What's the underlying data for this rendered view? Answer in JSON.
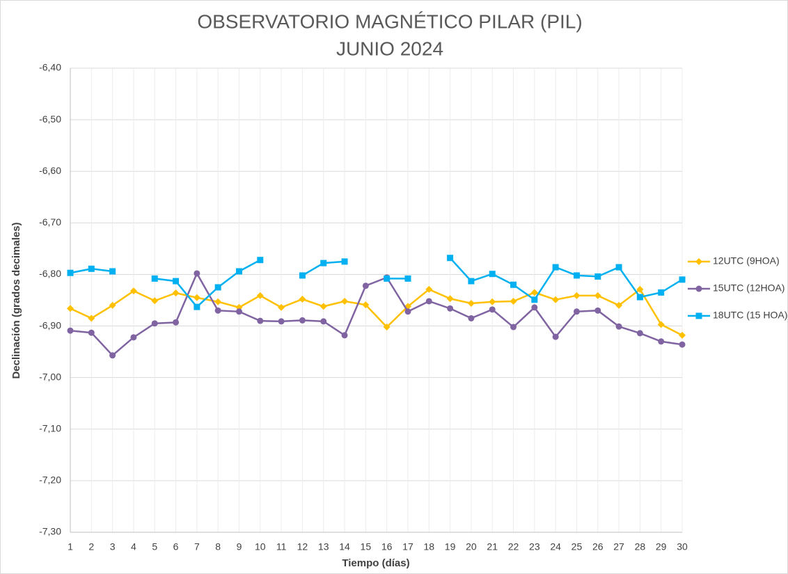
{
  "chart_data": {
    "type": "line",
    "title": "OBSERVATORIO MAGNÉTICO PILAR (PIL)",
    "subtitle": "JUNIO 2024",
    "x_label": "Tiempo (días)",
    "y_label": "Declinación  (grados decimales)",
    "categories": [
      "1",
      "2",
      "3",
      "4",
      "5",
      "6",
      "7",
      "8",
      "9",
      "10",
      "11",
      "12",
      "13",
      "14",
      "15",
      "16",
      "17",
      "18",
      "19",
      "20",
      "21",
      "22",
      "23",
      "24",
      "25",
      "26",
      "27",
      "28",
      "29",
      "30"
    ],
    "ylim": [
      -7.3,
      -6.4
    ],
    "yticks": [
      {
        "value": -7.3,
        "label": "-7,30"
      },
      {
        "value": -7.2,
        "label": "-7,20"
      },
      {
        "value": -7.1,
        "label": "-7,10"
      },
      {
        "value": -7.0,
        "label": "-7,00"
      },
      {
        "value": -6.9,
        "label": "-6,90"
      },
      {
        "value": -6.8,
        "label": "-6,80"
      },
      {
        "value": -6.7,
        "label": "-6,70"
      },
      {
        "value": -6.6,
        "label": "-6,60"
      },
      {
        "value": -6.5,
        "label": "-6,50"
      },
      {
        "value": -6.4,
        "label": "-6,40"
      }
    ],
    "grid": true,
    "legend": "right",
    "series": [
      {
        "name": "12UTC (9HOA)",
        "color": "#FFC000",
        "marker": "diamond",
        "values": [
          -6.866,
          -6.885,
          -6.86,
          -6.832,
          -6.851,
          -6.836,
          -6.845,
          -6.853,
          -6.864,
          -6.841,
          -6.864,
          -6.848,
          -6.862,
          -6.852,
          -6.859,
          -6.902,
          -6.862,
          -6.829,
          -6.847,
          -6.856,
          -6.853,
          -6.852,
          -6.835,
          -6.849,
          -6.841,
          -6.841,
          -6.86,
          -6.829,
          -6.897,
          -6.918
        ]
      },
      {
        "name": "15UTC (12HOA)",
        "color": "#8064A2",
        "marker": "circle",
        "values": [
          -6.909,
          -6.913,
          -6.957,
          -6.922,
          -6.895,
          -6.893,
          -6.798,
          -6.87,
          -6.872,
          -6.89,
          -6.891,
          -6.889,
          -6.891,
          -6.918,
          -6.822,
          -6.806,
          -6.872,
          -6.852,
          -6.866,
          -6.885,
          -6.868,
          -6.902,
          -6.864,
          -6.921,
          -6.872,
          -6.87,
          -6.901,
          -6.914,
          -6.93,
          -6.936
        ]
      },
      {
        "name": "18UTC (15 HOA)",
        "color": "#00B0F0",
        "marker": "square",
        "values": [
          -6.797,
          -6.789,
          -6.794,
          null,
          -6.808,
          -6.813,
          -6.863,
          -6.825,
          -6.794,
          -6.772,
          null,
          -6.802,
          -6.778,
          -6.775,
          null,
          -6.808,
          -6.808,
          null,
          -6.768,
          -6.813,
          -6.799,
          -6.82,
          -6.849,
          -6.786,
          -6.802,
          -6.804,
          -6.786,
          -6.844,
          -6.835,
          -6.81
        ]
      }
    ]
  }
}
